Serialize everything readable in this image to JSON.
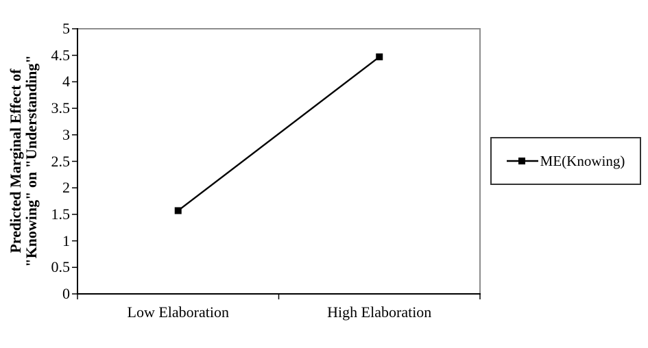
{
  "chart_data": {
    "type": "line",
    "title": "",
    "categories": [
      "Low Elaboration",
      "High Elaboration"
    ],
    "series": [
      {
        "name": "ME(Knowing)",
        "values": [
          1.57,
          4.47
        ],
        "color": "#000000",
        "marker": "square"
      }
    ],
    "xlabel": "",
    "ylabel": "Predicted Marginal Effect of \"Knowing\" on \"Understanding\"",
    "ylabel_lines": [
      "Predicted Marginal Effect of",
      "\"Knowing\" on \"Understanding\""
    ],
    "ylim": [
      0,
      5
    ],
    "yticks": [
      0,
      0.5,
      1,
      1.5,
      2,
      2.5,
      3,
      3.5,
      4,
      4.5,
      5
    ],
    "grid": false,
    "legend": {
      "position": "right",
      "entries": [
        "ME(Knowing)"
      ]
    },
    "colors": {
      "series": "#000000",
      "axis": "#000000",
      "plot_border": "#8c8c8c",
      "legend_border": "#333333",
      "background": "#ffffff",
      "text": "#000000"
    }
  }
}
